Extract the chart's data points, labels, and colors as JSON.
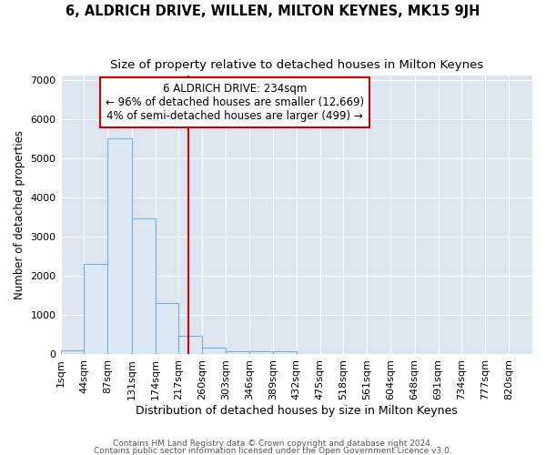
{
  "title": "6, ALDRICH DRIVE, WILLEN, MILTON KEYNES, MK15 9JH",
  "subtitle": "Size of property relative to detached houses in Milton Keynes",
  "xlabel": "Distribution of detached houses by size in Milton Keynes",
  "ylabel": "Number of detached properties",
  "bin_edges": [
    1,
    44,
    87,
    131,
    174,
    217,
    260,
    303,
    346,
    389,
    432,
    475,
    518,
    561,
    604,
    648,
    691,
    734,
    777,
    820,
    863
  ],
  "bar_heights": [
    100,
    2300,
    5500,
    3450,
    1300,
    460,
    160,
    80,
    80,
    60,
    0,
    0,
    0,
    0,
    0,
    0,
    0,
    0,
    0,
    0
  ],
  "bar_color": "#dce8f3",
  "bar_edge_color": "#7aafd4",
  "bar_linewidth": 0.8,
  "vline_x": 234,
  "vline_color": "#cc0000",
  "vline_linewidth": 1.5,
  "annotation_line1": "6 ALDRICH DRIVE: 234sqm",
  "annotation_line2": "← 96% of detached houses are smaller (12,669)",
  "annotation_line3": "4% of semi-detached houses are larger (499) →",
  "ylim": [
    0,
    7100
  ],
  "yticks": [
    0,
    1000,
    2000,
    3000,
    4000,
    5000,
    6000,
    7000
  ],
  "bg_color": "#dde5f0",
  "footer_line1": "Contains HM Land Registry data © Crown copyright and database right 2024.",
  "footer_line2": "Contains public sector information licensed under the Open Government Licence v3.0.",
  "title_fontsize": 10.5,
  "subtitle_fontsize": 9.5,
  "xlabel_fontsize": 9,
  "ylabel_fontsize": 8.5,
  "tick_fontsize": 8,
  "footer_fontsize": 6.5,
  "annotation_fontsize": 8.5
}
